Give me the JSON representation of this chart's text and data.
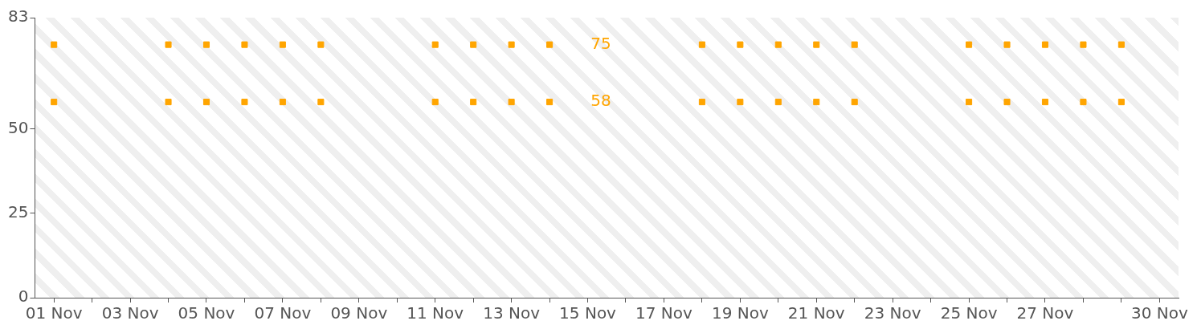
{
  "chart_data": {
    "type": "scatter",
    "categories": [
      "01 Nov",
      null,
      "03 Nov",
      null,
      "05 Nov",
      null,
      "07 Nov",
      null,
      "09 Nov",
      null,
      "11 Nov",
      null,
      "13 Nov",
      null,
      "15 Nov",
      null,
      "17 Nov",
      null,
      "19 Nov",
      null,
      "21 Nov",
      null,
      "23 Nov",
      null,
      "25 Nov",
      null,
      "27 Nov",
      null,
      null,
      "30 Nov"
    ],
    "series": [
      {
        "color": "#ffa500",
        "values": [
          75,
          null,
          null,
          75,
          75,
          75,
          75,
          75,
          null,
          null,
          75,
          75,
          75,
          75,
          null,
          null,
          null,
          75,
          75,
          75,
          75,
          75,
          null,
          null,
          75,
          75,
          75,
          75,
          75,
          null
        ]
      },
      {
        "color": "#ffa500",
        "values": [
          58,
          null,
          null,
          58,
          58,
          58,
          58,
          58,
          null,
          null,
          58,
          58,
          58,
          58,
          null,
          null,
          null,
          58,
          58,
          58,
          58,
          58,
          null,
          null,
          58,
          58,
          58,
          58,
          58,
          null
        ]
      }
    ],
    "marker": "square",
    "annotations": [
      "75",
      "58"
    ],
    "ylim": [
      0,
      83
    ],
    "yticks": [
      0,
      25,
      50,
      83
    ],
    "legend": false
  }
}
